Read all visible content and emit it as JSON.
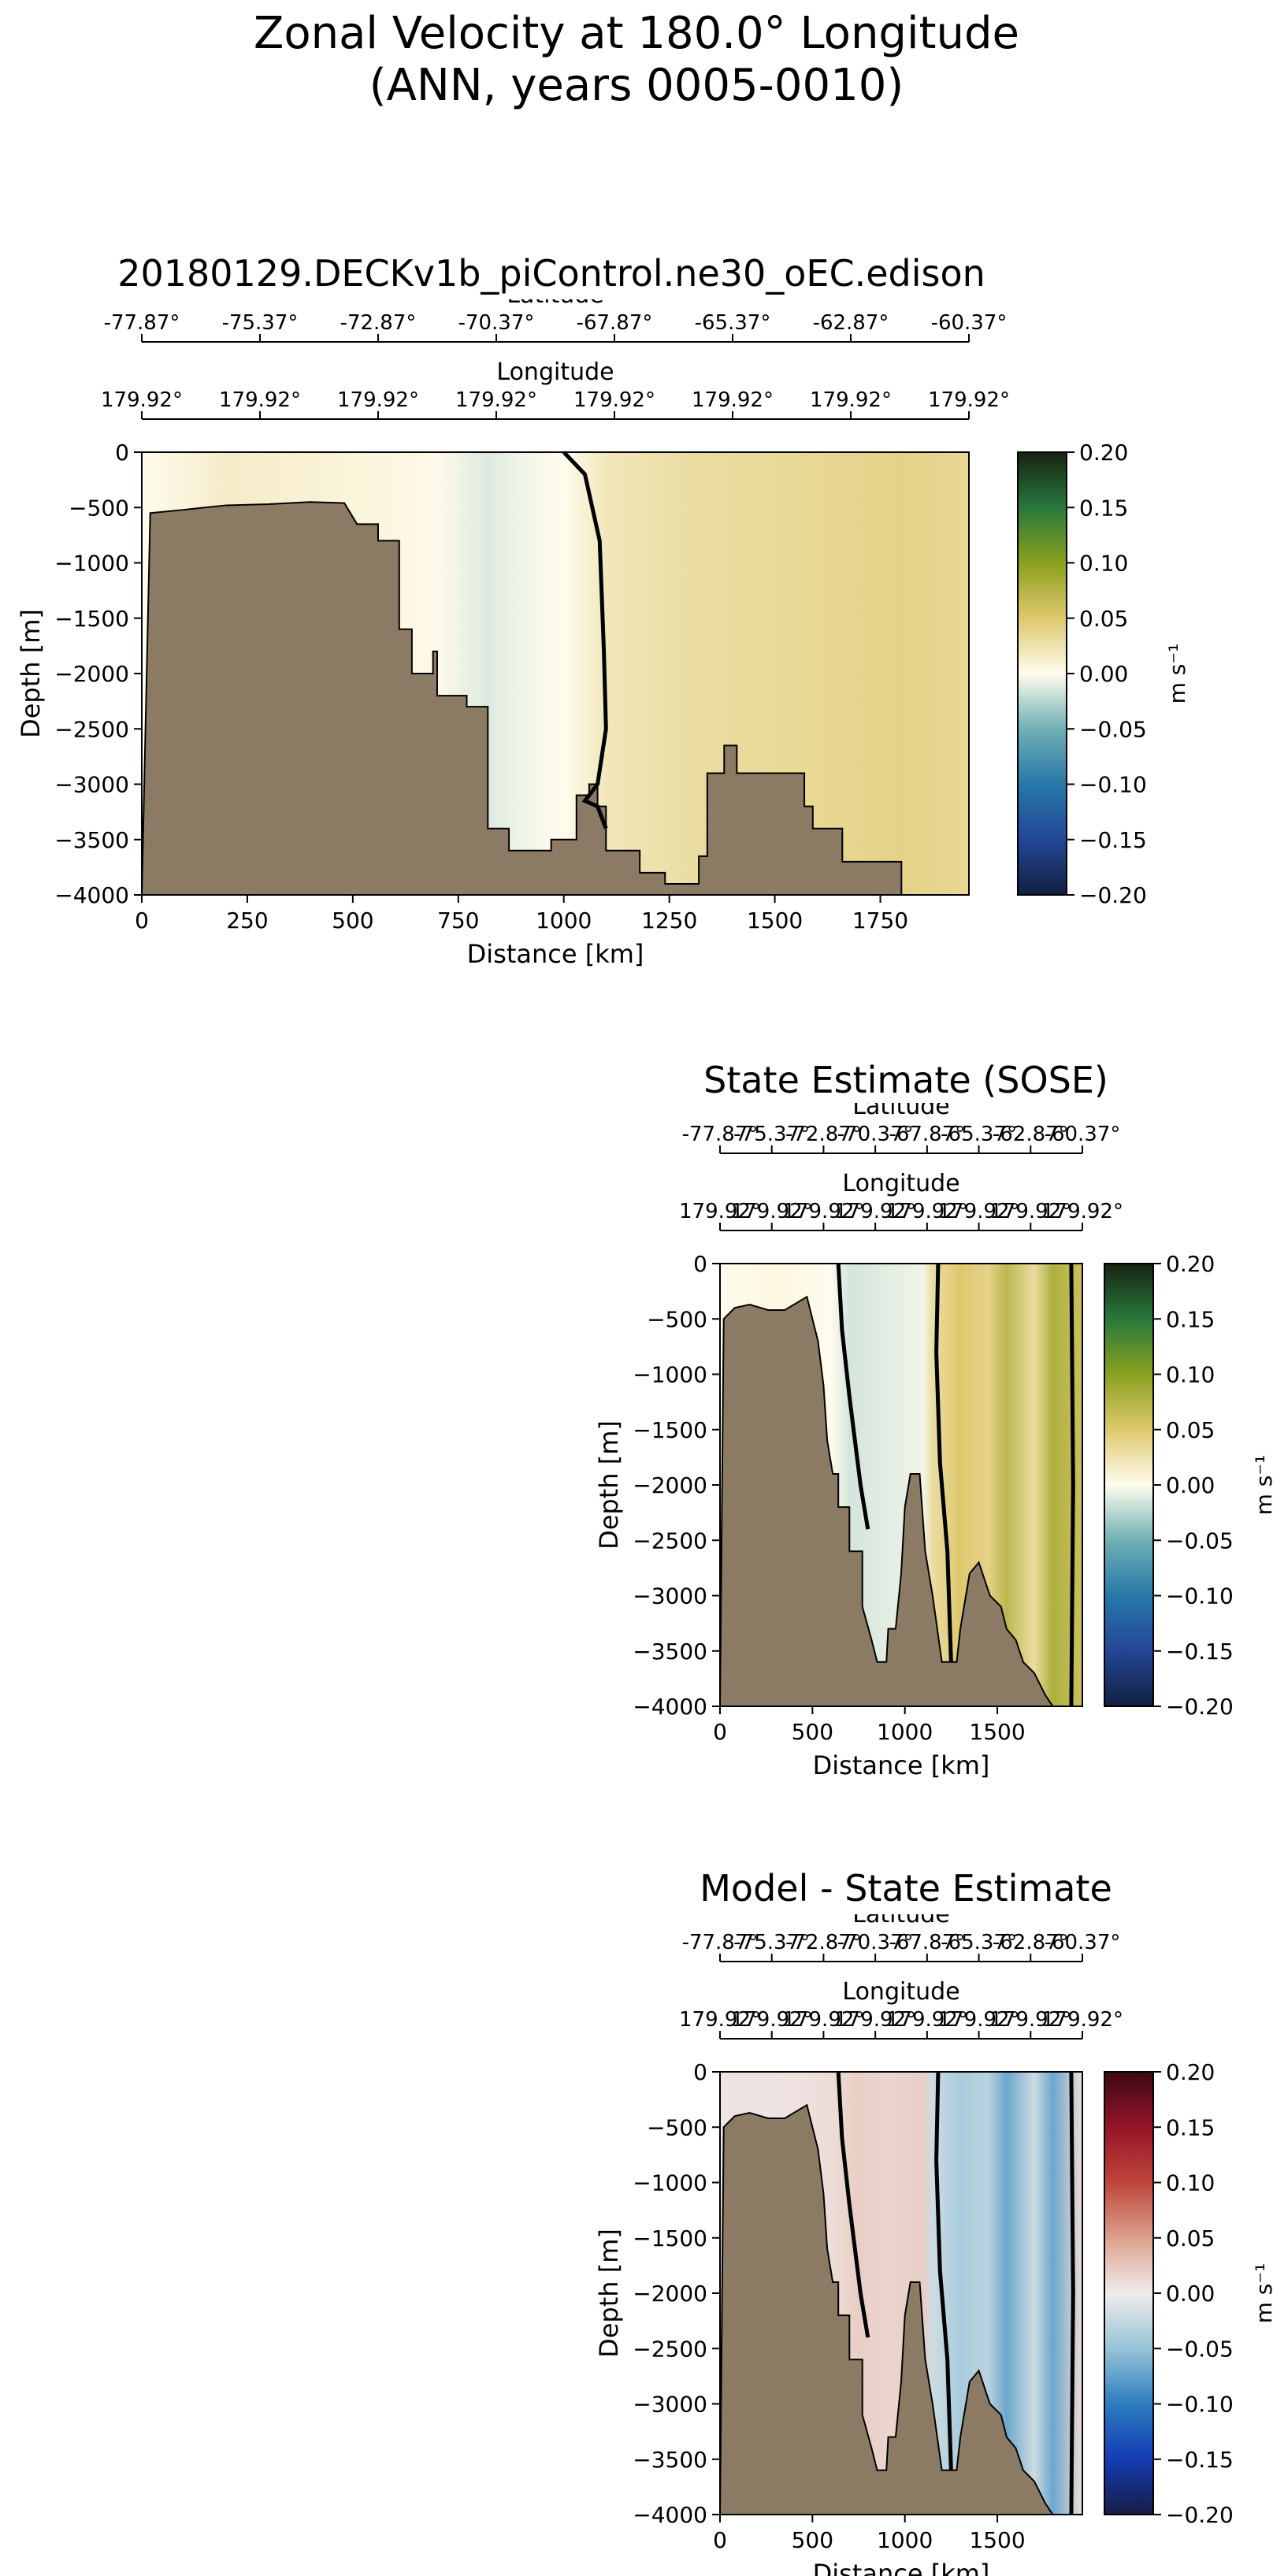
{
  "figure": {
    "title_line1": "Zonal Velocity at 180.0° Longitude",
    "title_line2": "(ANN, years 0005-0010)"
  },
  "colors": {
    "land": "#8c7b64",
    "contour": "#000000",
    "delta_pos_max": "#c7642e",
    "delta_neg_max": "#1f7fbd"
  },
  "chart_data": [
    {
      "type": "heatmap",
      "id": "model",
      "title": "20180129.DECKv1b_piControl.ne30_oEC.edison",
      "xlabel": "Distance [km]",
      "ylabel": "Depth [m]",
      "xlim": [
        0,
        1960
      ],
      "ylim": [
        -4000,
        0
      ],
      "x_ticks": [
        0,
        250,
        500,
        750,
        1000,
        1250,
        1500,
        1750
      ],
      "y_ticks": [
        0,
        -500,
        -1000,
        -1500,
        -2000,
        -2500,
        -3000,
        -3500,
        -4000
      ],
      "lat_axis_label": "Latitude",
      "lat_ticks": [
        "-77.87°",
        "-75.37°",
        "-72.87°",
        "-70.37°",
        "-67.87°",
        "-65.37°",
        "-62.87°",
        "-60.37°"
      ],
      "lon_axis_label": "Longitude",
      "lon_ticks": [
        "179.92°",
        "179.92°",
        "179.92°",
        "179.92°",
        "179.92°",
        "179.92°",
        "179.92°",
        "179.92°"
      ],
      "colorbar": {
        "colormap": "delta (ocean velocity)",
        "label": "m s⁻¹",
        "min": -0.2,
        "max": 0.2,
        "ticks": [
          "0.20",
          "0.15",
          "0.10",
          "0.05",
          "0.00",
          "−0.05",
          "−0.10",
          "−0.15",
          "−0.20"
        ]
      },
      "bathymetry_depth_by_distance": [
        [
          0,
          -4000
        ],
        [
          20,
          -550
        ],
        [
          100,
          -520
        ],
        [
          200,
          -480
        ],
        [
          300,
          -470
        ],
        [
          400,
          -450
        ],
        [
          480,
          -460
        ],
        [
          510,
          -650
        ],
        [
          560,
          -650
        ],
        [
          560,
          -800
        ],
        [
          610,
          -800
        ],
        [
          610,
          -1600
        ],
        [
          640,
          -1600
        ],
        [
          640,
          -2000
        ],
        [
          690,
          -2000
        ],
        [
          690,
          -1800
        ],
        [
          700,
          -1800
        ],
        [
          700,
          -2200
        ],
        [
          770,
          -2200
        ],
        [
          770,
          -2300
        ],
        [
          820,
          -2300
        ],
        [
          820,
          -3400
        ],
        [
          870,
          -3400
        ],
        [
          870,
          -3600
        ],
        [
          970,
          -3600
        ],
        [
          970,
          -3500
        ],
        [
          1030,
          -3500
        ],
        [
          1030,
          -3100
        ],
        [
          1060,
          -3100
        ],
        [
          1060,
          -3000
        ],
        [
          1080,
          -3000
        ],
        [
          1080,
          -3200
        ],
        [
          1100,
          -3200
        ],
        [
          1100,
          -3600
        ],
        [
          1180,
          -3600
        ],
        [
          1180,
          -3800
        ],
        [
          1240,
          -3800
        ],
        [
          1240,
          -3900
        ],
        [
          1320,
          -3900
        ],
        [
          1320,
          -3650
        ],
        [
          1340,
          -3650
        ],
        [
          1340,
          -2900
        ],
        [
          1380,
          -2900
        ],
        [
          1380,
          -2650
        ],
        [
          1410,
          -2650
        ],
        [
          1410,
          -2900
        ],
        [
          1570,
          -2900
        ],
        [
          1570,
          -3200
        ],
        [
          1590,
          -3200
        ],
        [
          1590,
          -3400
        ],
        [
          1660,
          -3400
        ],
        [
          1660,
          -3700
        ],
        [
          1800,
          -3700
        ],
        [
          1800,
          -4000
        ]
      ],
      "field_bands_distance_velocity": [
        [
          0,
          0.0
        ],
        [
          200,
          0.015
        ],
        [
          500,
          0.008
        ],
        [
          700,
          0.002
        ],
        [
          820,
          -0.012
        ],
        [
          900,
          -0.005
        ],
        [
          1000,
          0.0
        ],
        [
          1100,
          0.02
        ],
        [
          1300,
          0.03
        ],
        [
          1600,
          0.035
        ],
        [
          1800,
          0.04
        ],
        [
          1960,
          0.035
        ]
      ],
      "zero_contour": [
        [
          1000,
          0
        ],
        [
          1050,
          -200
        ],
        [
          1085,
          -800
        ],
        [
          1095,
          -1800
        ],
        [
          1100,
          -2500
        ],
        [
          1080,
          -3000
        ],
        [
          1050,
          -3150
        ],
        [
          1080,
          -3200
        ],
        [
          1100,
          -3400
        ]
      ]
    },
    {
      "type": "heatmap",
      "id": "sose",
      "title": "State Estimate (SOSE)",
      "xlabel": "Distance [km]",
      "ylabel": "Depth [m]",
      "xlim": [
        0,
        1960
      ],
      "ylim": [
        -4000,
        0
      ],
      "x_ticks": [
        0,
        500,
        1000,
        1500
      ],
      "y_ticks": [
        0,
        -500,
        -1000,
        -1500,
        -2000,
        -2500,
        -3000,
        -3500,
        -4000
      ],
      "lat_axis_label": "Latitude",
      "lat_ticks": [
        "-77.87°",
        "-75.37°",
        "-72.87°",
        "-70.37°",
        "-67.87°",
        "-65.37°",
        "-62.87°",
        "-60.37°"
      ],
      "lon_axis_label": "Longitude",
      "lon_ticks": [
        "179.92°",
        "179.92°",
        "179.92°",
        "179.92°",
        "179.92°",
        "179.92°",
        "179.92°",
        "179.92°"
      ],
      "colorbar": {
        "colormap": "delta (ocean velocity)",
        "label": "m s⁻¹",
        "min": -0.2,
        "max": 0.2,
        "ticks": [
          "0.20",
          "0.15",
          "0.10",
          "0.05",
          "0.00",
          "−0.05",
          "−0.10",
          "−0.15",
          "−0.20"
        ]
      },
      "bathymetry_depth_by_distance": [
        [
          0,
          -4000
        ],
        [
          20,
          -500
        ],
        [
          80,
          -400
        ],
        [
          160,
          -370
        ],
        [
          260,
          -420
        ],
        [
          350,
          -420
        ],
        [
          420,
          -350
        ],
        [
          470,
          -300
        ],
        [
          500,
          -500
        ],
        [
          530,
          -700
        ],
        [
          560,
          -1100
        ],
        [
          580,
          -1600
        ],
        [
          610,
          -1900
        ],
        [
          640,
          -1900
        ],
        [
          640,
          -2200
        ],
        [
          700,
          -2200
        ],
        [
          700,
          -2600
        ],
        [
          770,
          -2600
        ],
        [
          770,
          -3100
        ],
        [
          820,
          -3400
        ],
        [
          850,
          -3600
        ],
        [
          900,
          -3600
        ],
        [
          910,
          -3300
        ],
        [
          950,
          -3300
        ],
        [
          980,
          -2800
        ],
        [
          1000,
          -2200
        ],
        [
          1030,
          -1900
        ],
        [
          1080,
          -1900
        ],
        [
          1110,
          -2600
        ],
        [
          1150,
          -3000
        ],
        [
          1200,
          -3600
        ],
        [
          1280,
          -3600
        ],
        [
          1300,
          -3300
        ],
        [
          1350,
          -2800
        ],
        [
          1400,
          -2700
        ],
        [
          1460,
          -3000
        ],
        [
          1520,
          -3100
        ],
        [
          1550,
          -3300
        ],
        [
          1600,
          -3400
        ],
        [
          1640,
          -3600
        ],
        [
          1700,
          -3700
        ],
        [
          1760,
          -3900
        ],
        [
          1800,
          -4000
        ]
      ],
      "field_bands_distance_velocity": [
        [
          0,
          0.0
        ],
        [
          300,
          0.005
        ],
        [
          600,
          0.0
        ],
        [
          700,
          -0.015
        ],
        [
          900,
          -0.01
        ],
        [
          1100,
          -0.005
        ],
        [
          1150,
          0.03
        ],
        [
          1300,
          0.05
        ],
        [
          1450,
          0.04
        ],
        [
          1550,
          0.07
        ],
        [
          1700,
          0.03
        ],
        [
          1800,
          0.08
        ],
        [
          1960,
          0.06
        ]
      ],
      "zero_contour": [
        [
          640,
          0
        ],
        [
          660,
          -600
        ],
        [
          700,
          -1200
        ],
        [
          760,
          -2000
        ],
        [
          800,
          -2400
        ],
        [
          1180,
          0
        ],
        [
          1170,
          -800
        ],
        [
          1190,
          -1800
        ],
        [
          1230,
          -2600
        ],
        [
          1250,
          -3600
        ],
        [
          1900,
          0
        ],
        [
          1910,
          -2000
        ],
        [
          1900,
          -4000
        ]
      ]
    },
    {
      "type": "heatmap",
      "id": "difference",
      "title": "Model - State Estimate",
      "xlabel": "Distance [km]",
      "ylabel": "Depth [m]",
      "xlim": [
        0,
        1960
      ],
      "ylim": [
        -4000,
        0
      ],
      "x_ticks": [
        0,
        500,
        1000,
        1500
      ],
      "y_ticks": [
        0,
        -500,
        -1000,
        -1500,
        -2000,
        -2500,
        -3000,
        -3500,
        -4000
      ],
      "lat_axis_label": "Latitude",
      "lat_ticks": [
        "-77.87°",
        "-75.37°",
        "-72.87°",
        "-70.37°",
        "-67.87°",
        "-65.37°",
        "-62.87°",
        "-60.37°"
      ],
      "lon_axis_label": "Longitude",
      "lon_ticks": [
        "179.92°",
        "179.92°",
        "179.92°",
        "179.92°",
        "179.92°",
        "179.92°",
        "179.92°",
        "179.92°"
      ],
      "colorbar": {
        "colormap": "balance (diverging)",
        "label": "m s⁻¹",
        "min": -0.2,
        "max": 0.2,
        "ticks": [
          "0.20",
          "0.15",
          "0.10",
          "0.05",
          "0.00",
          "−0.05",
          "−0.10",
          "−0.15",
          "−0.20"
        ]
      },
      "bathymetry_depth_by_distance": [
        [
          0,
          -4000
        ],
        [
          20,
          -500
        ],
        [
          80,
          -400
        ],
        [
          160,
          -370
        ],
        [
          260,
          -420
        ],
        [
          350,
          -420
        ],
        [
          420,
          -350
        ],
        [
          470,
          -300
        ],
        [
          500,
          -500
        ],
        [
          530,
          -700
        ],
        [
          560,
          -1100
        ],
        [
          580,
          -1600
        ],
        [
          610,
          -1900
        ],
        [
          640,
          -1900
        ],
        [
          640,
          -2200
        ],
        [
          700,
          -2200
        ],
        [
          700,
          -2600
        ],
        [
          770,
          -2600
        ],
        [
          770,
          -3100
        ],
        [
          820,
          -3400
        ],
        [
          850,
          -3600
        ],
        [
          900,
          -3600
        ],
        [
          910,
          -3300
        ],
        [
          950,
          -3300
        ],
        [
          980,
          -2800
        ],
        [
          1000,
          -2200
        ],
        [
          1030,
          -1900
        ],
        [
          1080,
          -1900
        ],
        [
          1110,
          -2600
        ],
        [
          1150,
          -3000
        ],
        [
          1200,
          -3600
        ],
        [
          1280,
          -3600
        ],
        [
          1300,
          -3300
        ],
        [
          1350,
          -2800
        ],
        [
          1400,
          -2700
        ],
        [
          1460,
          -3000
        ],
        [
          1520,
          -3100
        ],
        [
          1550,
          -3300
        ],
        [
          1600,
          -3400
        ],
        [
          1640,
          -3600
        ],
        [
          1700,
          -3700
        ],
        [
          1760,
          -3900
        ],
        [
          1800,
          -4000
        ]
      ],
      "field_bands_distance_velocity": [
        [
          0,
          0.005
        ],
        [
          300,
          0.005
        ],
        [
          600,
          0.01
        ],
        [
          750,
          0.02
        ],
        [
          900,
          0.015
        ],
        [
          1100,
          0.02
        ],
        [
          1150,
          -0.02
        ],
        [
          1300,
          -0.04
        ],
        [
          1450,
          -0.03
        ],
        [
          1550,
          -0.07
        ],
        [
          1700,
          -0.02
        ],
        [
          1800,
          -0.07
        ],
        [
          1960,
          0.01
        ]
      ],
      "zero_contour": [
        [
          640,
          0
        ],
        [
          660,
          -600
        ],
        [
          700,
          -1200
        ],
        [
          760,
          -2000
        ],
        [
          800,
          -2400
        ],
        [
          1180,
          0
        ],
        [
          1170,
          -800
        ],
        [
          1190,
          -1800
        ],
        [
          1230,
          -2600
        ],
        [
          1250,
          -3600
        ],
        [
          1900,
          0
        ],
        [
          1910,
          -2000
        ],
        [
          1900,
          -4000
        ]
      ]
    }
  ]
}
